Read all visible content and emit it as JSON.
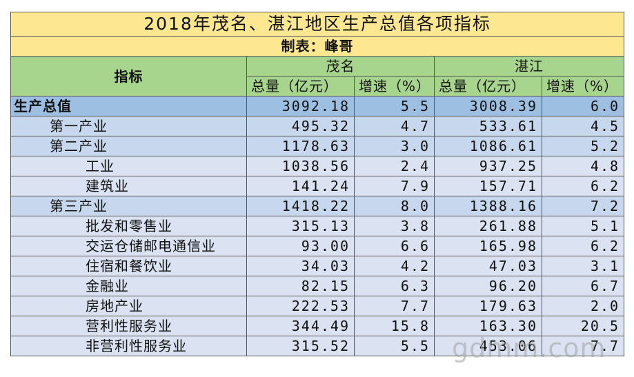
{
  "title": "2018年茂名、湛江地区生产总值各项指标",
  "maker": "制表：峰哥",
  "headers": {
    "indicator": "指标",
    "region1": "茂名",
    "region2": "湛江",
    "total_col": "总量（亿元）",
    "growth_col": "增速（%）"
  },
  "rows": [
    {
      "name": "生产总值",
      "level": 0,
      "mm_total": "3092.18",
      "mm_growth": "5.5",
      "zj_total": "3008.39",
      "zj_growth": "6.0"
    },
    {
      "name": "第一产业",
      "level": 1,
      "mm_total": "495.32",
      "mm_growth": "4.7",
      "zj_total": "533.61",
      "zj_growth": "4.5"
    },
    {
      "name": "第二产业",
      "level": 1,
      "mm_total": "1178.63",
      "mm_growth": "3.0",
      "zj_total": "1086.61",
      "zj_growth": "5.2"
    },
    {
      "name": "工业",
      "level": 2,
      "mm_total": "1038.56",
      "mm_growth": "2.4",
      "zj_total": "937.25",
      "zj_growth": "4.8"
    },
    {
      "name": "建筑业",
      "level": 2,
      "mm_total": "141.24",
      "mm_growth": "7.9",
      "zj_total": "157.71",
      "zj_growth": "6.2"
    },
    {
      "name": "第三产业",
      "level": 1,
      "mm_total": "1418.22",
      "mm_growth": "8.0",
      "zj_total": "1388.16",
      "zj_growth": "7.2"
    },
    {
      "name": "批发和零售业",
      "level": 2,
      "mm_total": "315.13",
      "mm_growth": "3.8",
      "zj_total": "261.88",
      "zj_growth": "5.1"
    },
    {
      "name": "交运仓储邮电通信业",
      "level": 2,
      "mm_total": "93.00",
      "mm_growth": "6.6",
      "zj_total": "165.98",
      "zj_growth": "6.2"
    },
    {
      "name": "住宿和餐饮业",
      "level": 2,
      "mm_total": "34.03",
      "mm_growth": "4.2",
      "zj_total": "47.03",
      "zj_growth": "3.1"
    },
    {
      "name": "金融业",
      "level": 2,
      "mm_total": "82.15",
      "mm_growth": "6.3",
      "zj_total": "96.20",
      "zj_growth": "6.7"
    },
    {
      "name": "房地产业",
      "level": 2,
      "mm_total": "222.53",
      "mm_growth": "7.7",
      "zj_total": "179.63",
      "zj_growth": "2.0"
    },
    {
      "name": "营利性服务业",
      "level": 2,
      "mm_total": "344.49",
      "mm_growth": "15.8",
      "zj_total": "163.30",
      "zj_growth": "20.5"
    },
    {
      "name": "非营利性服务业",
      "level": 2,
      "mm_total": "315.52",
      "mm_growth": "5.5",
      "zj_total": "453.06",
      "zj_growth": "7.7"
    }
  ],
  "watermark": "gdmm.com"
}
